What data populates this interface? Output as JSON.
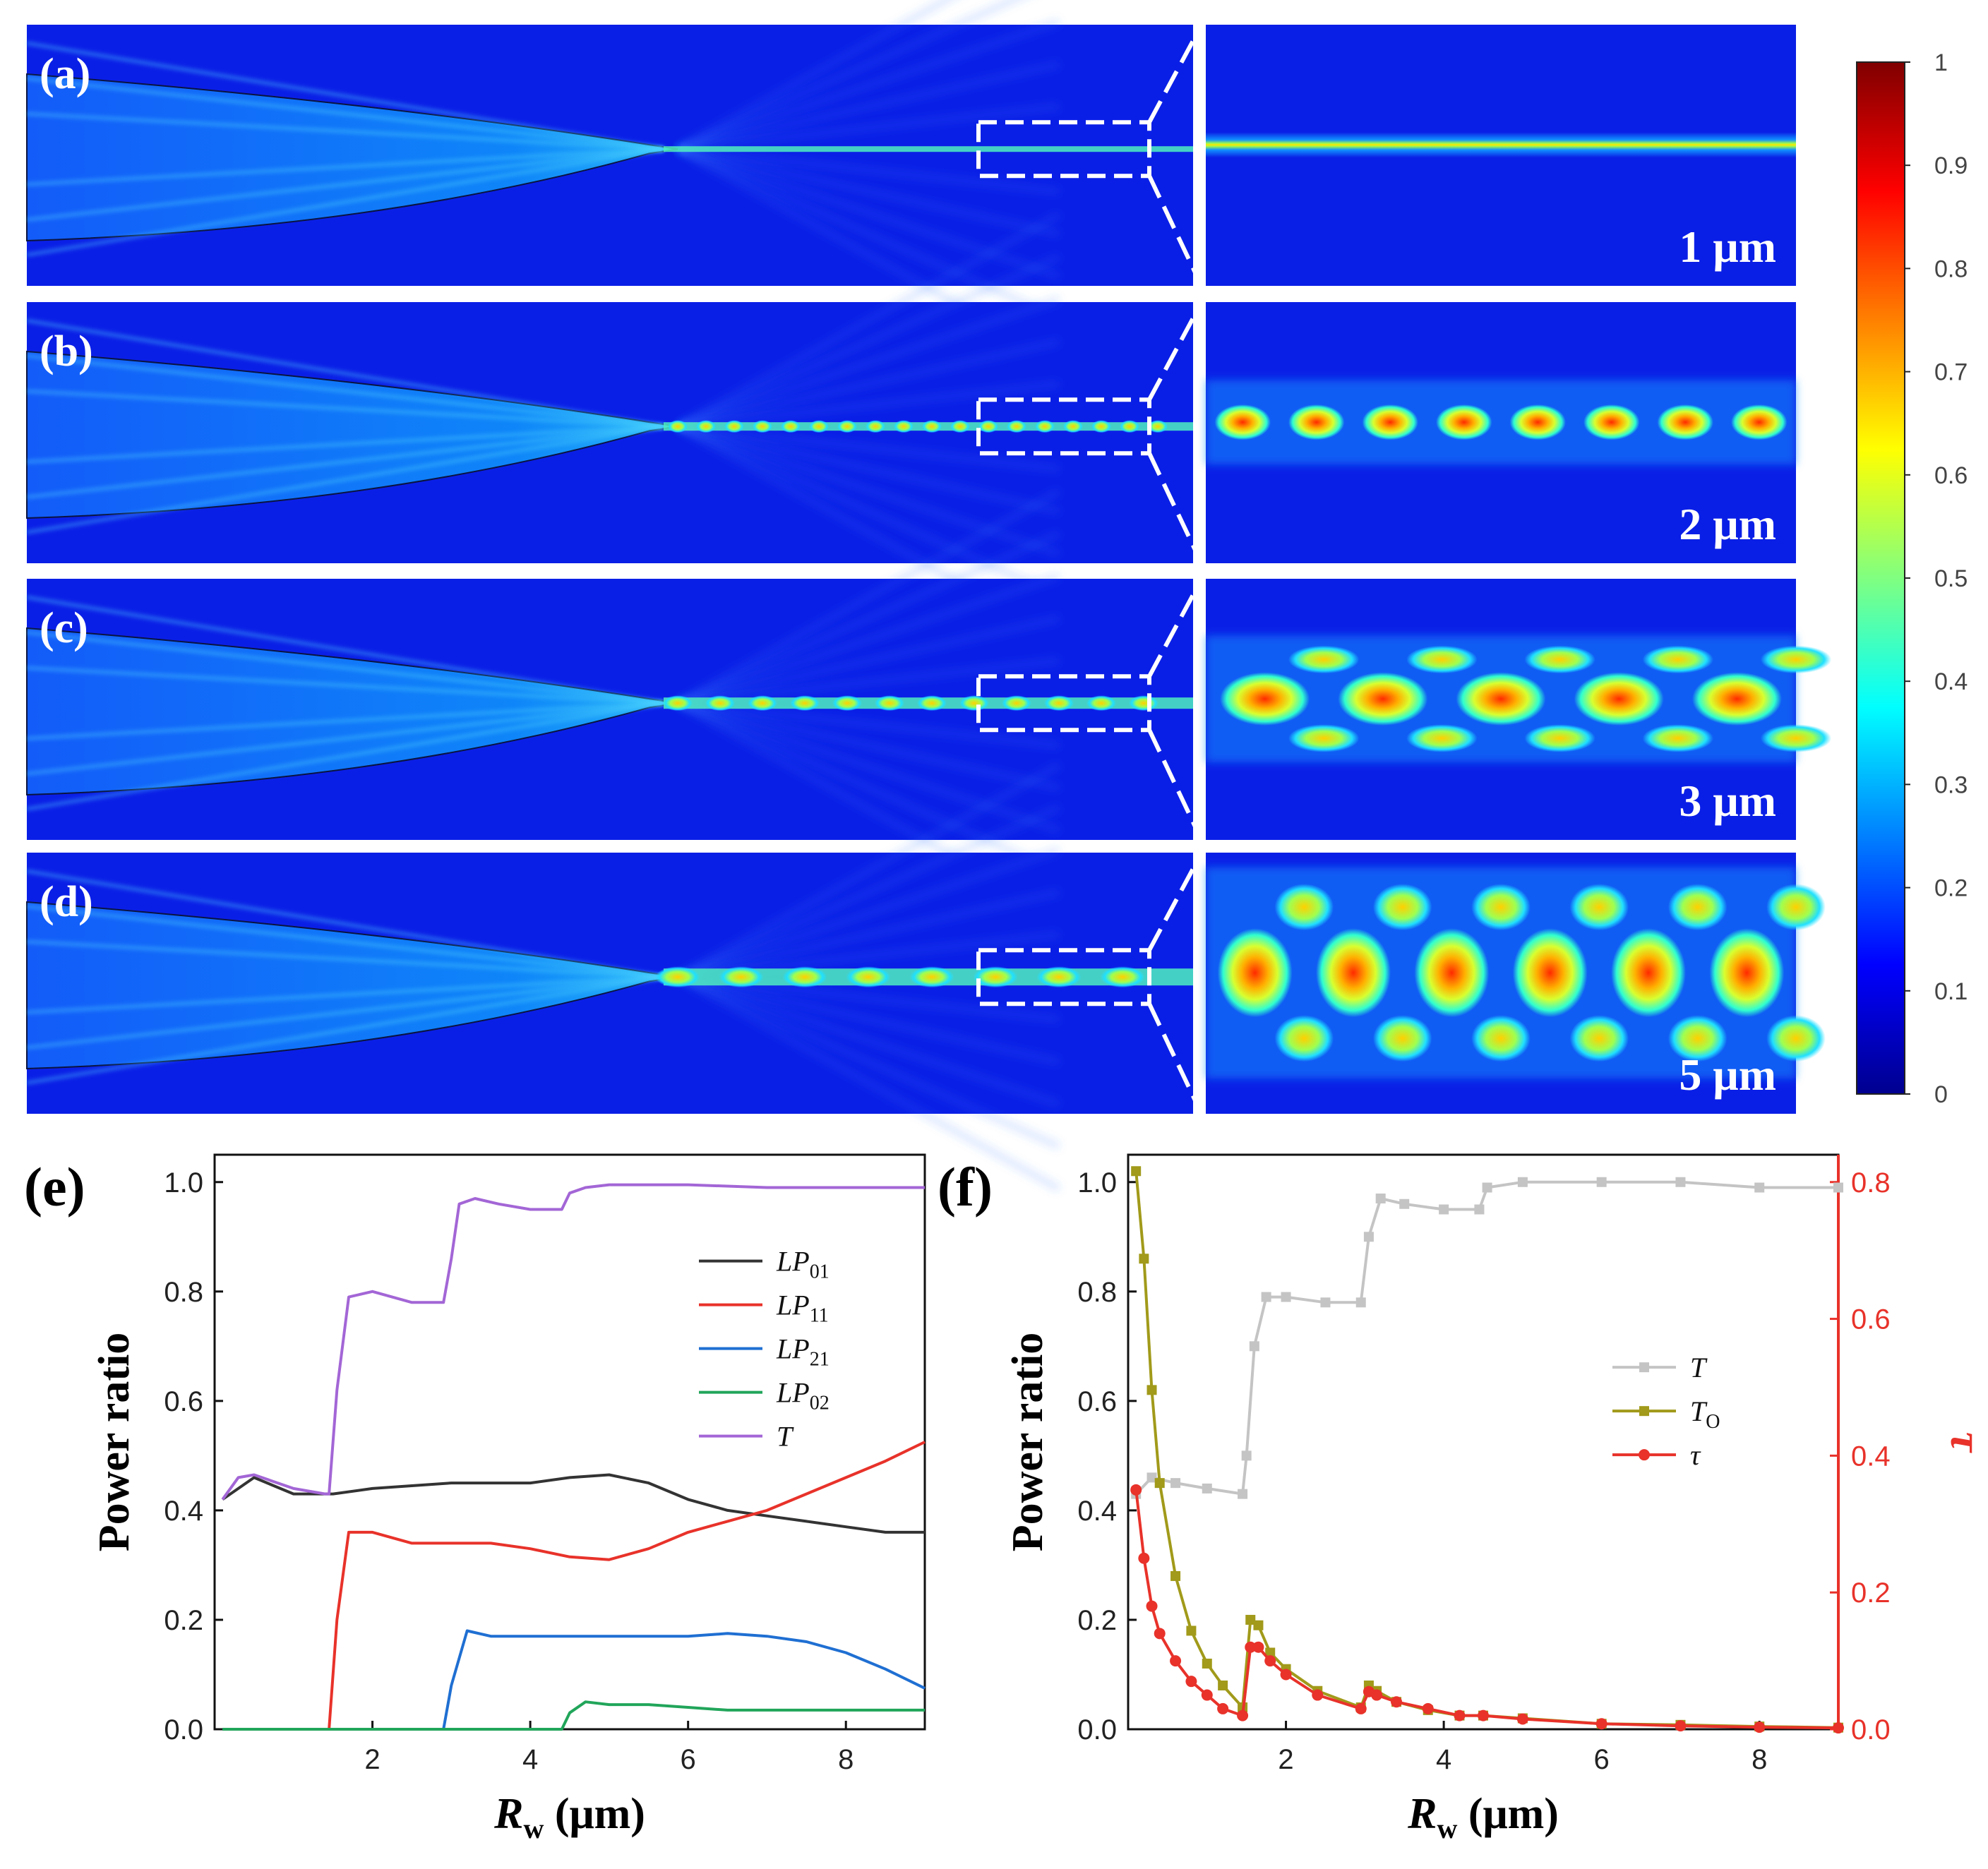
{
  "colors": {
    "field_bg": "#0a1fe6",
    "white": "#ffffff",
    "LP01": "#333333",
    "LP11": "#e8322a",
    "LP21": "#1f6fd2",
    "LP02": "#21a55a",
    "T_e": "#a366d6",
    "T_f": "#c4c4c4",
    "To": "#a19a1a",
    "tau": "#e8322a"
  },
  "field_panels": [
    {
      "label": "(a)",
      "scale": "1 μm",
      "mode": "single"
    },
    {
      "label": "(b)",
      "scale": "2 μm",
      "mode": "beads"
    },
    {
      "label": "(c)",
      "scale": "3 μm",
      "mode": "mixed"
    },
    {
      "label": "(d)",
      "scale": "5 μm",
      "mode": "multi"
    }
  ],
  "colorbar": {
    "type": "heatmap",
    "ticks": [
      "0",
      "0.1",
      "0.2",
      "0.3",
      "0.4",
      "0.5",
      "0.6",
      "0.7",
      "0.8",
      "0.9",
      "1"
    ],
    "stops": [
      "#00008f",
      "#0000ff",
      "#0080ff",
      "#00ffff",
      "#80ff80",
      "#ffff00",
      "#ff8000",
      "#ff0000",
      "#800000"
    ]
  },
  "chart_data": [
    {
      "panel": "(e)",
      "type": "line",
      "xlabel": "R",
      "xlabel_sub": "w",
      "xlabel_unit": " (μm)",
      "ylabel": "Power ratio",
      "xlim": [
        0,
        9
      ],
      "ylim": [
        0,
        1.05
      ],
      "xticks": [
        "2",
        "4",
        "6",
        "8"
      ],
      "yticks": [
        "0.0",
        "0.2",
        "0.4",
        "0.6",
        "0.8",
        "1.0"
      ],
      "legend_position": "right-middle",
      "series": [
        {
          "name": "LP",
          "sub": "01",
          "color_key": "LP01",
          "x": [
            0.1,
            0.5,
            1.0,
            1.5,
            2.0,
            2.5,
            3.0,
            3.5,
            4.0,
            4.5,
            5.0,
            5.5,
            6.0,
            6.5,
            7.0,
            7.5,
            8.0,
            8.5,
            9.0
          ],
          "y": [
            0.42,
            0.46,
            0.43,
            0.43,
            0.44,
            0.445,
            0.45,
            0.45,
            0.45,
            0.46,
            0.465,
            0.45,
            0.42,
            0.4,
            0.39,
            0.38,
            0.37,
            0.36,
            0.36
          ]
        },
        {
          "name": "LP",
          "sub": "11",
          "color_key": "LP11",
          "x": [
            0.1,
            1.0,
            1.45,
            1.55,
            1.7,
            2.0,
            2.5,
            3.0,
            3.5,
            4.0,
            4.5,
            5.0,
            5.5,
            6.0,
            6.5,
            7.0,
            7.5,
            8.0,
            8.5,
            9.0
          ],
          "y": [
            0,
            0,
            0,
            0.2,
            0.36,
            0.36,
            0.34,
            0.34,
            0.34,
            0.33,
            0.315,
            0.31,
            0.33,
            0.36,
            0.38,
            0.4,
            0.43,
            0.46,
            0.49,
            0.525
          ]
        },
        {
          "name": "LP",
          "sub": "21",
          "color_key": "LP21",
          "x": [
            0.1,
            2.9,
            3.0,
            3.2,
            3.5,
            4.0,
            4.5,
            5.0,
            5.5,
            6.0,
            6.5,
            7.0,
            7.5,
            8.0,
            8.5,
            9.0
          ],
          "y": [
            0,
            0,
            0.08,
            0.18,
            0.17,
            0.17,
            0.17,
            0.17,
            0.17,
            0.17,
            0.175,
            0.17,
            0.16,
            0.14,
            0.11,
            0.075
          ]
        },
        {
          "name": "LP",
          "sub": "02",
          "color_key": "LP02",
          "x": [
            0.1,
            4.4,
            4.5,
            4.7,
            5.0,
            5.5,
            6.0,
            6.5,
            7.0,
            7.5,
            8.0,
            8.5,
            9.0
          ],
          "y": [
            0,
            0,
            0.03,
            0.05,
            0.045,
            0.045,
            0.04,
            0.035,
            0.035,
            0.035,
            0.035,
            0.035,
            0.035
          ]
        },
        {
          "name": "T",
          "sub": "",
          "color_key": "T_e",
          "x": [
            0.1,
            0.3,
            0.5,
            1.0,
            1.4,
            1.45,
            1.55,
            1.7,
            2.0,
            2.5,
            2.9,
            3.0,
            3.1,
            3.3,
            3.6,
            4.0,
            4.4,
            4.5,
            4.7,
            5.0,
            6.0,
            7.0,
            8.0,
            9.0
          ],
          "y": [
            0.42,
            0.46,
            0.465,
            0.44,
            0.43,
            0.43,
            0.62,
            0.79,
            0.8,
            0.78,
            0.78,
            0.86,
            0.96,
            0.97,
            0.96,
            0.95,
            0.95,
            0.98,
            0.99,
            0.995,
            0.995,
            0.99,
            0.99,
            0.99
          ]
        }
      ]
    },
    {
      "panel": "(f)",
      "type": "line",
      "xlabel": "R",
      "xlabel_sub": "w",
      "xlabel_unit": " (μm)",
      "ylabel": "Power ratio",
      "y2label": "τ",
      "xlim": [
        0,
        9
      ],
      "ylim": [
        0,
        1.05
      ],
      "y2lim": [
        0,
        0.84
      ],
      "xticks": [
        "2",
        "4",
        "6",
        "8"
      ],
      "yticks": [
        "0.0",
        "0.2",
        "0.4",
        "0.6",
        "0.8",
        "1.0"
      ],
      "y2ticks": [
        "0.0",
        "0.2",
        "0.4",
        "0.6",
        "0.8"
      ],
      "legend_position": "right-middle",
      "series": [
        {
          "name": "T",
          "sub": "",
          "axis": "left",
          "color_key": "T_f",
          "marker": "square",
          "x": [
            0.1,
            0.3,
            0.6,
            1.0,
            1.45,
            1.5,
            1.6,
            1.75,
            2.0,
            2.5,
            2.95,
            3.05,
            3.2,
            3.5,
            4.0,
            4.45,
            4.55,
            5.0,
            6.0,
            7.0,
            8.0,
            9.0
          ],
          "y": [
            0.43,
            0.46,
            0.45,
            0.44,
            0.43,
            0.5,
            0.7,
            0.79,
            0.79,
            0.78,
            0.78,
            0.9,
            0.97,
            0.96,
            0.95,
            0.95,
            0.99,
            1.0,
            1.0,
            1.0,
            0.99,
            0.99
          ]
        },
        {
          "name": "T",
          "sub": "O",
          "axis": "left",
          "color_key": "To",
          "marker": "square",
          "x": [
            0.1,
            0.2,
            0.3,
            0.4,
            0.6,
            0.8,
            1.0,
            1.2,
            1.45,
            1.55,
            1.65,
            1.8,
            2.0,
            2.4,
            2.95,
            3.05,
            3.15,
            3.4,
            3.8,
            4.2,
            4.5,
            5.0,
            6.0,
            7.0,
            8.0,
            9.0
          ],
          "y": [
            1.02,
            0.86,
            0.62,
            0.45,
            0.28,
            0.18,
            0.12,
            0.08,
            0.04,
            0.2,
            0.19,
            0.14,
            0.11,
            0.07,
            0.04,
            0.08,
            0.07,
            0.05,
            0.035,
            0.025,
            0.025,
            0.02,
            0.01,
            0.008,
            0.005,
            0.003
          ]
        },
        {
          "name": "τ",
          "sub": "",
          "axis": "right",
          "color_key": "tau",
          "marker": "circle",
          "x": [
            0.1,
            0.2,
            0.3,
            0.4,
            0.6,
            0.8,
            1.0,
            1.2,
            1.45,
            1.55,
            1.65,
            1.8,
            2.0,
            2.4,
            2.95,
            3.05,
            3.15,
            3.4,
            3.8,
            4.2,
            4.5,
            5.0,
            6.0,
            7.0,
            8.0,
            9.0
          ],
          "y": [
            0.35,
            0.25,
            0.18,
            0.14,
            0.1,
            0.07,
            0.05,
            0.03,
            0.02,
            0.12,
            0.12,
            0.1,
            0.08,
            0.05,
            0.03,
            0.055,
            0.05,
            0.04,
            0.03,
            0.02,
            0.02,
            0.015,
            0.008,
            0.005,
            0.003,
            0.002
          ]
        }
      ]
    }
  ]
}
